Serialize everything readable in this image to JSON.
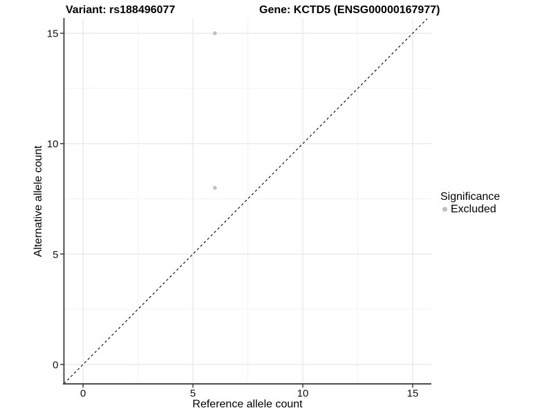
{
  "chart_data": {
    "type": "scatter",
    "titles": [
      "Variant: rs188496077",
      "Gene: KCTD5 (ENSG00000167977)"
    ],
    "xlabel": "Reference allele count",
    "ylabel": "Alternative allele count",
    "xticks": [
      0,
      5,
      10,
      15
    ],
    "yticks": [
      0,
      5,
      10,
      15
    ],
    "xticks_minor": [
      2.5,
      7.5,
      12.5
    ],
    "yticks_minor": [
      2.5,
      7.5,
      12.5
    ],
    "xlim": [
      -0.87,
      15.85
    ],
    "ylim": [
      -0.88,
      15.66
    ],
    "grid": true,
    "identity_line": {
      "style": "dashed",
      "equation": "y = x"
    },
    "series": [
      {
        "name": "Excluded",
        "color": "#c0c0c0",
        "points": [
          {
            "x": 6,
            "y": 15
          },
          {
            "x": 6,
            "y": 8
          }
        ]
      }
    ],
    "legend": {
      "title": "Significance",
      "position": "right",
      "items": [
        {
          "label": "Excluded",
          "color": "#c0c0c0"
        }
      ]
    }
  },
  "colors": {
    "grid_major": "#e6e6e6",
    "grid_minor": "#f2f2f2",
    "axis": "#4d4d4d",
    "tick": "#333333",
    "tick_label": "#111111",
    "point": "#c0c0c0",
    "identity": "#000000"
  }
}
